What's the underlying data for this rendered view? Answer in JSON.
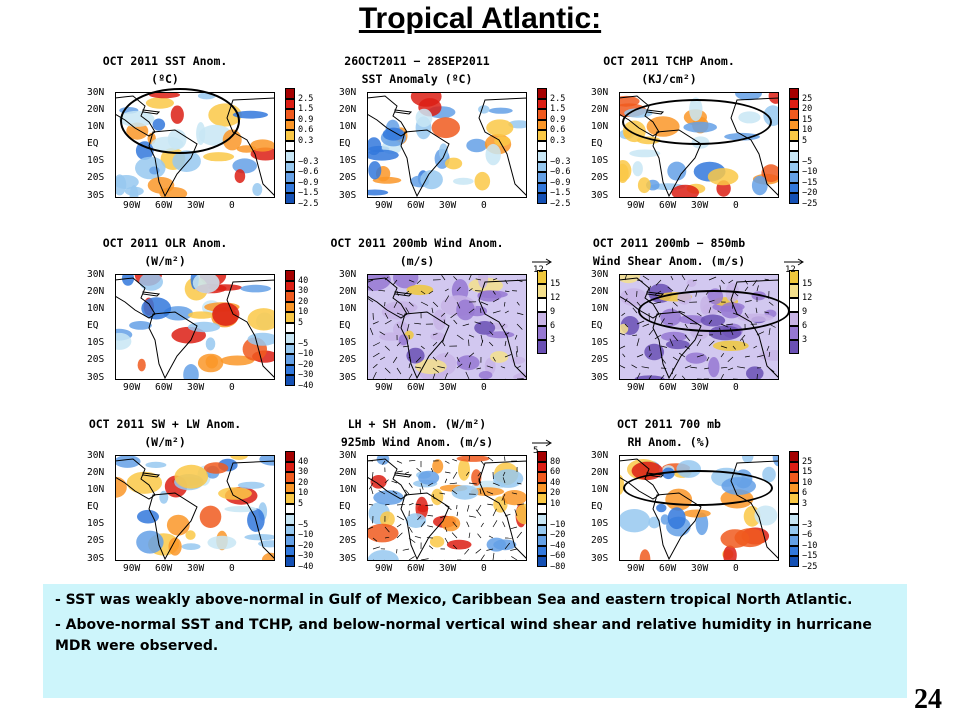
{
  "slide": {
    "title": "Tropical Atlantic:",
    "page_number": "24",
    "bullets": [
      "- SST was weakly above-normal in Gulf of Mexico, Caribbean Sea and eastern tropical North Atlantic.",
      "- Above-normal SST and TCHP, and below-normal vertical  wind shear and relative humidity in hurricane MDR were observed."
    ]
  },
  "axes": {
    "lat_labels": [
      "30N",
      "20N",
      "10N",
      "EQ",
      "10S",
      "20S",
      "30S"
    ],
    "lon_labels": [
      "90W",
      "60W",
      "30W",
      "0"
    ]
  },
  "panels": [
    {
      "id": "sst",
      "title1": "OCT 2011 SST Anom.",
      "title2": "(ºC)",
      "colorbar": [
        "2.5",
        "1.5",
        "0.9",
        "0.6",
        "0.3",
        "",
        "−0.3",
        "−0.6",
        "−0.9",
        "−1.5",
        "−2.5"
      ],
      "palette": "div"
    },
    {
      "id": "sst-change",
      "title1": "26OCT2011 − 28SEP2011",
      "title2": "SST Anomaly (ºC)",
      "colorbar": [
        "2.5",
        "1.5",
        "0.9",
        "0.6",
        "0.3",
        "",
        "−0.3",
        "−0.6",
        "−0.9",
        "−1.5",
        "−2.5"
      ],
      "palette": "div"
    },
    {
      "id": "tchp",
      "title1": "OCT 2011 TCHP Anom.",
      "title2": "(KJ/cm²)",
      "colorbar": [
        "25",
        "20",
        "15",
        "10",
        "5",
        "",
        "−5",
        "−10",
        "−15",
        "−20",
        "−25"
      ],
      "palette": "div"
    },
    {
      "id": "olr",
      "title1": "OCT 2011 OLR Anom.",
      "title2": "(W/m²)",
      "colorbar": [
        "40",
        "30",
        "20",
        "10",
        "5",
        "",
        "−5",
        "−10",
        "−20",
        "−30",
        "−40"
      ],
      "palette": "div"
    },
    {
      "id": "wind200",
      "title1": "OCT 2011 200mb Wind Anom.",
      "title2": "(m/s)",
      "colorbar": [
        "15",
        "12",
        "9",
        "6",
        "3"
      ],
      "palette": "wind",
      "ref_vector": "12"
    },
    {
      "id": "shear",
      "title1": "OCT 2011 200mb − 850mb",
      "title2": "Wind Shear Anom. (m/s)",
      "colorbar": [
        "15",
        "12",
        "9",
        "6",
        "3"
      ],
      "palette": "wind",
      "ref_vector": "12"
    },
    {
      "id": "swlw",
      "title1": "OCT 2011 SW + LW Anom.",
      "title2": "(W/m²)",
      "colorbar": [
        "40",
        "30",
        "20",
        "10",
        "5",
        "",
        "−5",
        "−10",
        "−20",
        "−30",
        "−40"
      ],
      "palette": "div"
    },
    {
      "id": "lhsh",
      "title1": "LH + SH Anom. (W/m²)",
      "title2": "925mb Wind Anom. (m/s)",
      "colorbar": [
        "80",
        "60",
        "40",
        "20",
        "10",
        "",
        "−10",
        "−20",
        "−40",
        "−60",
        "−80"
      ],
      "palette": "div",
      "ref_vector": "5"
    },
    {
      "id": "rh700",
      "title1": "OCT 2011 700 mb",
      "title2": "RH Anom. (%)",
      "colorbar": [
        "25",
        "15",
        "10",
        "6",
        "3",
        "",
        "−3",
        "−6",
        "−10",
        "−15",
        "−25"
      ],
      "palette": "div"
    }
  ],
  "colors": {
    "divergent": [
      "#a50000",
      "#dc1e14",
      "#f05a1e",
      "#fa9628",
      "#fac846",
      "#ffffff",
      "#c8e6f5",
      "#96c8f0",
      "#64a0e6",
      "#3278dc",
      "#1450b4"
    ],
    "wind": [
      "#f0c83c",
      "#f5e08c",
      "#ffffff",
      "#c8b4e6",
      "#9678d2",
      "#6a50b4"
    ],
    "textbox_bg": "#cdf5fb"
  }
}
